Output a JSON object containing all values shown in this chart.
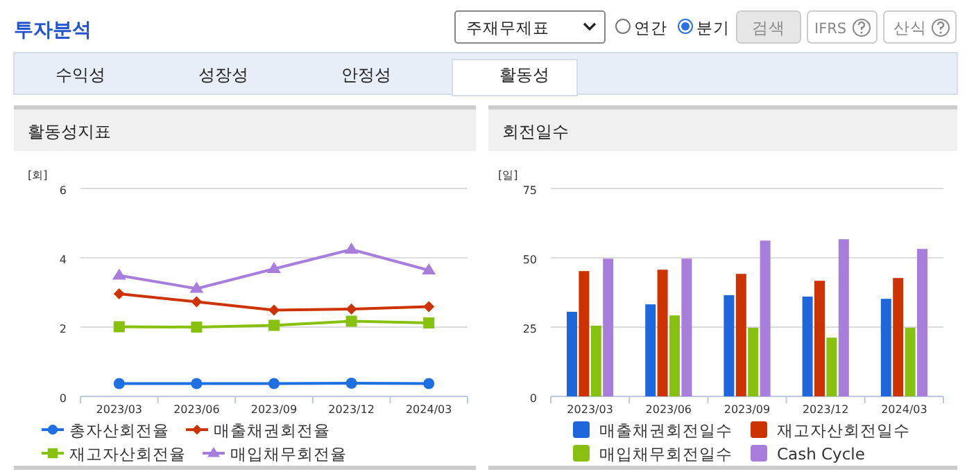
{
  "chart_data": [
    {
      "type": "other",
      "title": "투자분석",
      "annotations": [
        "주재무제표",
        "연간",
        "분기",
        "검색",
        "IFRS",
        "산식",
        "수익성",
        "성장성",
        "안정성",
        "활동성"
      ]
    },
    {
      "type": "line",
      "title": "활동성지표",
      "ylabel": "[회]",
      "categories": [
        "2023/03",
        "2023/06",
        "2023/09",
        "2023/12",
        "2024/03"
      ],
      "ylim": [
        0,
        6
      ],
      "yticks": [
        0,
        2,
        4,
        6
      ],
      "grid": "y",
      "legend": "bottom",
      "series": [
        {
          "name": "총자산회전율",
          "color": "#1f6fe0",
          "marker": "circle",
          "values": [
            0.37,
            0.37,
            0.37,
            0.38,
            0.37
          ]
        },
        {
          "name": "매출채권회전율",
          "color": "#cc3300",
          "marker": "diamond",
          "values": [
            2.96,
            2.73,
            2.49,
            2.52,
            2.59
          ]
        },
        {
          "name": "재고자산회전율",
          "color": "#88c010",
          "marker": "square",
          "values": [
            2.01,
            2.0,
            2.05,
            2.17,
            2.12
          ]
        },
        {
          "name": "매입채무회전율",
          "color": "#a77edb",
          "marker": "triangle",
          "values": [
            3.49,
            3.11,
            3.68,
            4.24,
            3.64
          ]
        }
      ]
    },
    {
      "type": "bar",
      "title": "회전일수",
      "ylabel": "[일]",
      "categories": [
        "2023/03",
        "2023/06",
        "2023/09",
        "2023/12",
        "2024/03"
      ],
      "ylim": [
        0,
        75
      ],
      "yticks": [
        0,
        25,
        50,
        75
      ],
      "grid": "y",
      "legend": "bottom",
      "series": [
        {
          "name": "매출채권회전일수",
          "color": "#1f66dd",
          "values": [
            30.5,
            33.2,
            36.5,
            36,
            35.2
          ]
        },
        {
          "name": "재고자산회전일수",
          "color": "#cc3300",
          "values": [
            45.2,
            45.7,
            44.2,
            41.7,
            42.7
          ]
        },
        {
          "name": "매입채무회전일수",
          "color": "#88c010",
          "values": [
            25.5,
            29.2,
            24.8,
            21.2,
            24.8
          ]
        },
        {
          "name": "Cash Cycle",
          "color": "#a77edb",
          "values": [
            49.7,
            49.7,
            56.2,
            56.7,
            53.2
          ]
        }
      ]
    }
  ]
}
